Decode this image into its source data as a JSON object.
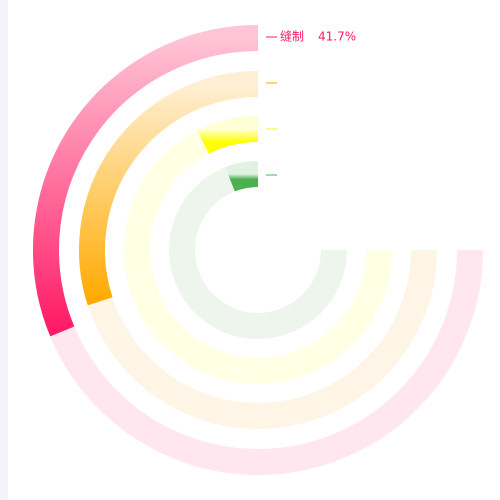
{
  "chart_data": {
    "type": "radial-bar",
    "max": 100,
    "series": [
      {
        "name": "缝制",
        "values": [
          41.7
        ],
        "value_labels": [
          "41.7%"
        ],
        "colors": [
          "#ffc4d6",
          "#ff1a66"
        ],
        "track": "#ffe6ef"
      },
      {
        "values": [
          40
        ],
        "colors": [
          "#ffefd2",
          "#ffaa00"
        ],
        "track": "#fff5e6"
      },
      {
        "values": [
          10
        ],
        "colors": [
          "#ffffd6",
          "#ffff00"
        ],
        "track": "#ffffe4"
      },
      {
        "values": [
          8
        ],
        "colors": [
          "#e2f2e2",
          "#4caf50"
        ],
        "track": "#edf5ec"
      }
    ]
  }
}
